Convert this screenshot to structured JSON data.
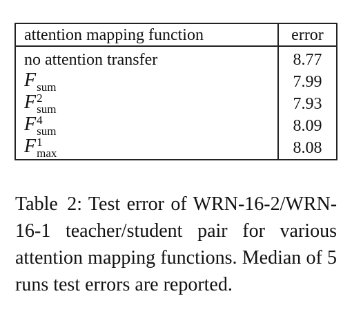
{
  "table": {
    "headers": {
      "function": "attention mapping function",
      "error": "error"
    },
    "rows": [
      {
        "base": "no attention transfer",
        "sup": "",
        "sub": "",
        "math": false,
        "error": "8.77"
      },
      {
        "base": "F",
        "sup": "",
        "sub": "sum",
        "math": true,
        "error": "7.99"
      },
      {
        "base": "F",
        "sup": "2",
        "sub": "sum",
        "math": true,
        "error": "7.93"
      },
      {
        "base": "F",
        "sup": "4",
        "sub": "sum",
        "math": true,
        "error": "8.09"
      },
      {
        "base": "F",
        "sup": "1",
        "sub": "max",
        "math": true,
        "error": "8.08"
      }
    ]
  },
  "caption": {
    "label": "Table 2:",
    "text": "Test error of WRN-16-2/WRN-16-1 teacher/student pair for various attention mapping functions. Median of 5 runs test errors are reported."
  }
}
